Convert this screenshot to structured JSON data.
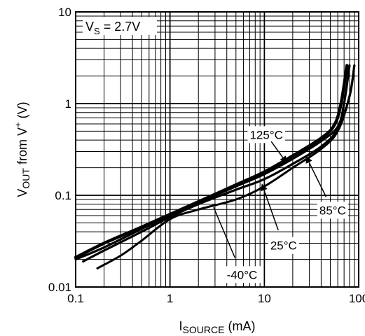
{
  "chart_data": {
    "type": "line",
    "xlabel": {
      "main": "I",
      "sub": "SOURCE",
      "unit": " (mA)"
    },
    "ylabel": {
      "main": "V",
      "sub": "OUT",
      "mid": " from V",
      "sup": "+",
      "unit": " (V)"
    },
    "x_scale": "log",
    "y_scale": "log",
    "xlim": [
      0.1,
      100
    ],
    "ylim": [
      0.01,
      10
    ],
    "x_ticks": [
      "0.1",
      "1",
      "10",
      "100"
    ],
    "y_ticks": [
      "0.01",
      "0.1",
      "1",
      "10"
    ],
    "grid": true,
    "note": {
      "main": "V",
      "sub": "S",
      "rest": " = 2.7V"
    },
    "series": [
      {
        "name": "125°C",
        "x": [
          0.1,
          0.2,
          0.5,
          1,
          2,
          5,
          10,
          20,
          40,
          55,
          65,
          75
        ],
        "y": [
          0.021,
          0.03,
          0.045,
          0.062,
          0.085,
          0.13,
          0.18,
          0.27,
          0.42,
          0.58,
          1.0,
          2.6
        ]
      },
      {
        "name": "85°C",
        "x": [
          0.1,
          0.2,
          0.5,
          1,
          2,
          5,
          10,
          20,
          40,
          60,
          70,
          80
        ],
        "y": [
          0.02,
          0.027,
          0.043,
          0.06,
          0.083,
          0.125,
          0.17,
          0.25,
          0.39,
          0.56,
          1.0,
          2.6
        ]
      },
      {
        "name": "25°C",
        "x": [
          0.12,
          0.2,
          0.5,
          1,
          2,
          5,
          10,
          20,
          40,
          60,
          80,
          90
        ],
        "y": [
          0.019,
          0.025,
          0.04,
          0.058,
          0.08,
          0.115,
          0.15,
          0.22,
          0.34,
          0.53,
          1.2,
          2.6
        ]
      },
      {
        "name": "-40°C",
        "x": [
          0.17,
          0.3,
          0.5,
          1,
          2,
          5,
          10,
          20,
          40,
          60,
          80,
          90
        ],
        "y": [
          0.016,
          0.022,
          0.032,
          0.055,
          0.07,
          0.09,
          0.125,
          0.2,
          0.32,
          0.5,
          1.2,
          2.6
        ]
      }
    ],
    "annotations": [
      {
        "label": "125°C",
        "series": "125°C"
      },
      {
        "label": "85°C",
        "series": "85°C"
      },
      {
        "label": "25°C",
        "series": "25°C"
      },
      {
        "label": "-40°C",
        "series": "-40°C"
      }
    ]
  }
}
